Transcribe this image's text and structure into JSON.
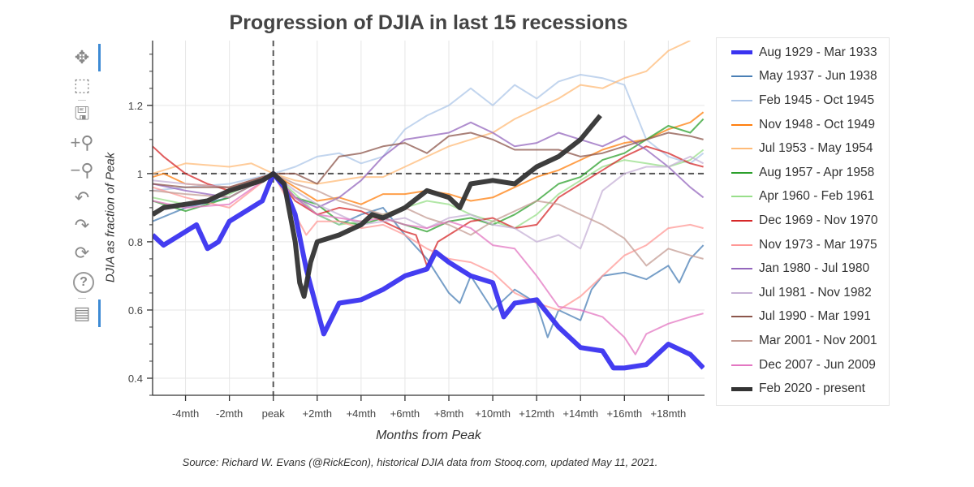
{
  "toolbar": {
    "tools": [
      {
        "name": "pan-icon",
        "glyph": "✥",
        "active": true
      },
      {
        "name": "box-zoom-icon",
        "glyph": "⬚",
        "active": false
      },
      {
        "name": "save-icon",
        "glyph": "🖫",
        "active": false
      },
      {
        "name": "zoom-in-icon",
        "glyph": "+⚲",
        "active": false
      },
      {
        "name": "zoom-out-icon",
        "glyph": "−⚲",
        "active": false
      },
      {
        "name": "undo-icon",
        "glyph": "↶",
        "active": false
      },
      {
        "name": "redo-icon",
        "glyph": "↷",
        "active": false
      },
      {
        "name": "reset-icon",
        "glyph": "⟳",
        "active": false
      },
      {
        "name": "help-icon",
        "glyph": "?",
        "active": false
      },
      {
        "name": "hover-icon",
        "glyph": "▤",
        "active": true
      }
    ]
  },
  "chart_data": {
    "type": "line",
    "title": "Progression of DJIA in last 15 recessions",
    "xlabel": "Months from Peak",
    "ylabel": "DJIA as fraction of Peak",
    "source": "Source: Richard W. Evans (@RickEcon), historical DJIA data from Stooq.com, updated May 11, 2021.",
    "xlim": [
      -5.5,
      19.65
    ],
    "ylim": [
      0.35,
      1.39
    ],
    "x_ticks": [
      {
        "v": -4,
        "label": "-4mth"
      },
      {
        "v": -2,
        "label": "-2mth"
      },
      {
        "v": 0,
        "label": "peak"
      },
      {
        "v": 2,
        "label": "+2mth"
      },
      {
        "v": 4,
        "label": "+4mth"
      },
      {
        "v": 6,
        "label": "+6mth"
      },
      {
        "v": 8,
        "label": "+8mth"
      },
      {
        "v": 10,
        "label": "+10mth"
      },
      {
        "v": 12,
        "label": "+12mth"
      },
      {
        "v": 14,
        "label": "+14mth"
      },
      {
        "v": 16,
        "label": "+16mth"
      },
      {
        "v": 18,
        "label": "+18mth"
      }
    ],
    "y_ticks": [
      {
        "v": 0.4,
        "label": "0.4"
      },
      {
        "v": 0.6,
        "label": "0.6"
      },
      {
        "v": 0.8,
        "label": "0.8"
      },
      {
        "v": 1.0,
        "label": "1"
      },
      {
        "v": 1.2,
        "label": "1.2"
      }
    ],
    "grid": true,
    "reference_lines": {
      "vertical_x": 0,
      "horizontal_y": 1.0
    },
    "legend_position": "right",
    "series": [
      {
        "name": "Aug 1929 - Mar 1933",
        "color": "#3a33f0",
        "thick": true,
        "x": [
          -5.5,
          -5,
          -4,
          -3.5,
          -3,
          -2.5,
          -2,
          -1,
          -0.5,
          0,
          0.5,
          1,
          1.5,
          2,
          2.3,
          3,
          4,
          5,
          6,
          7,
          7.4,
          8,
          9,
          10,
          10.5,
          11,
          12,
          13,
          14,
          15,
          15.5,
          16,
          17,
          18,
          19,
          19.6
        ],
        "y": [
          0.82,
          0.79,
          0.83,
          0.85,
          0.78,
          0.8,
          0.86,
          0.9,
          0.92,
          1.0,
          0.96,
          0.88,
          0.72,
          0.6,
          0.53,
          0.62,
          0.63,
          0.66,
          0.7,
          0.72,
          0.77,
          0.74,
          0.7,
          0.68,
          0.58,
          0.62,
          0.63,
          0.55,
          0.49,
          0.48,
          0.43,
          0.43,
          0.44,
          0.5,
          0.47,
          0.43
        ]
      },
      {
        "name": "May 1937 - Jun 1938",
        "color": "#4a7fb5",
        "x": [
          -5.5,
          -4,
          -2,
          0,
          1,
          2,
          3,
          4,
          5,
          6,
          7,
          8,
          8.5,
          9,
          10,
          11,
          12,
          12.5,
          13,
          14,
          14.5,
          15,
          16,
          17,
          18,
          18.5,
          19,
          19.6
        ],
        "y": [
          0.86,
          0.9,
          0.93,
          1.0,
          0.93,
          0.88,
          0.85,
          0.88,
          0.9,
          0.82,
          0.75,
          0.65,
          0.62,
          0.7,
          0.6,
          0.66,
          0.62,
          0.52,
          0.6,
          0.57,
          0.66,
          0.7,
          0.71,
          0.69,
          0.73,
          0.68,
          0.75,
          0.79
        ]
      },
      {
        "name": "Feb 1945 - Oct 1945",
        "color": "#aec7e8",
        "x": [
          -5.5,
          -4,
          -2,
          0,
          1,
          2,
          3,
          4,
          5,
          6,
          7,
          8,
          9,
          10,
          11,
          12,
          13,
          14,
          15,
          16,
          17,
          18,
          19,
          19.6
        ],
        "y": [
          0.95,
          0.96,
          0.97,
          1.0,
          1.02,
          1.05,
          1.06,
          1.03,
          1.05,
          1.13,
          1.17,
          1.2,
          1.25,
          1.2,
          1.26,
          1.22,
          1.27,
          1.29,
          1.28,
          1.26,
          1.1,
          1.05,
          1.03,
          1.06
        ]
      },
      {
        "name": "Nov 1948 - Oct 1949",
        "color": "#ff7f0e",
        "x": [
          -5.5,
          -5,
          -4,
          -2,
          0,
          1,
          2,
          3,
          4,
          5,
          6,
          7,
          8,
          9,
          10,
          11,
          12,
          13,
          14,
          15,
          16,
          17,
          18,
          19,
          19.6
        ],
        "y": [
          0.99,
          1.0,
          0.97,
          0.96,
          1.0,
          0.96,
          0.92,
          0.93,
          0.91,
          0.94,
          0.94,
          0.95,
          0.94,
          0.92,
          0.93,
          0.96,
          0.99,
          1.01,
          1.04,
          1.07,
          1.09,
          1.1,
          1.13,
          1.15,
          1.18
        ]
      },
      {
        "name": "Jul 1953 - May 1954",
        "color": "#ffbb78",
        "x": [
          -5.5,
          -4,
          -2,
          -1,
          0,
          1,
          2,
          3,
          4,
          5,
          6,
          7,
          8,
          9,
          10,
          11,
          12,
          13,
          14,
          15,
          16,
          17,
          18,
          19
        ],
        "y": [
          1.0,
          1.03,
          1.02,
          1.03,
          1.0,
          0.98,
          0.97,
          0.98,
          0.99,
          0.99,
          1.02,
          1.05,
          1.08,
          1.1,
          1.12,
          1.16,
          1.19,
          1.22,
          1.26,
          1.25,
          1.28,
          1.3,
          1.36,
          1.39
        ]
      },
      {
        "name": "Aug 1957 - Apr 1958",
        "color": "#2ca02c",
        "x": [
          -5.5,
          -4,
          -2,
          0,
          1,
          2,
          3,
          4,
          5,
          6,
          7,
          8,
          9,
          10,
          11,
          12,
          13,
          14,
          15,
          16,
          17,
          18,
          19,
          19.6
        ],
        "y": [
          0.92,
          0.89,
          0.93,
          1.0,
          0.93,
          0.91,
          0.86,
          0.85,
          0.87,
          0.85,
          0.83,
          0.86,
          0.87,
          0.85,
          0.88,
          0.92,
          0.97,
          0.99,
          1.04,
          1.06,
          1.1,
          1.14,
          1.12,
          1.16
        ]
      },
      {
        "name": "Apr 1960 - Feb 1961",
        "color": "#98df8a",
        "x": [
          -5.5,
          -4,
          -2,
          0,
          1,
          2,
          3,
          4,
          5,
          6,
          7,
          8,
          9,
          10,
          11,
          12,
          13,
          14,
          15,
          16,
          17,
          18,
          19,
          19.6
        ],
        "y": [
          0.93,
          0.91,
          0.94,
          1.0,
          0.94,
          0.88,
          0.85,
          0.86,
          0.88,
          0.9,
          0.92,
          0.91,
          0.88,
          0.86,
          0.84,
          0.88,
          0.94,
          0.98,
          1.02,
          1.04,
          1.03,
          1.02,
          1.04,
          1.07
        ]
      },
      {
        "name": "Dec 1969 - Nov 1970",
        "color": "#d62728",
        "x": [
          -5.5,
          -5,
          -4,
          -3,
          -2,
          -1,
          0,
          1,
          2,
          3,
          4,
          5,
          6,
          6.5,
          7,
          7.5,
          8,
          9,
          10,
          11,
          12,
          13,
          14,
          15,
          16,
          17,
          18,
          19,
          19.6
        ],
        "y": [
          1.08,
          1.05,
          1.0,
          0.97,
          0.95,
          0.97,
          1.0,
          0.92,
          0.88,
          0.9,
          0.89,
          0.86,
          0.83,
          0.82,
          0.73,
          0.8,
          0.82,
          0.86,
          0.87,
          0.84,
          0.85,
          0.93,
          0.97,
          1.01,
          1.05,
          1.08,
          1.06,
          1.03,
          1.02
        ]
      },
      {
        "name": "Nov 1973 - Mar 1975",
        "color": "#ff9896",
        "x": [
          -5.5,
          -4,
          -2,
          0,
          1,
          1.5,
          2,
          3,
          4,
          5,
          6,
          7,
          8,
          9,
          10,
          11,
          12,
          13,
          14,
          15,
          16,
          17,
          18,
          19,
          19.6
        ],
        "y": [
          0.96,
          0.93,
          0.9,
          1.0,
          0.88,
          0.82,
          0.86,
          0.86,
          0.84,
          0.85,
          0.82,
          0.78,
          0.75,
          0.74,
          0.71,
          0.65,
          0.62,
          0.6,
          0.64,
          0.7,
          0.76,
          0.79,
          0.84,
          0.85,
          0.84
        ]
      },
      {
        "name": "Jan 1980 - Jul 1980",
        "color": "#9467bd",
        "x": [
          -5.5,
          -4,
          -2,
          0,
          1,
          2,
          3,
          4,
          5,
          6,
          7,
          8,
          9,
          10,
          11,
          12,
          13,
          14,
          15,
          16,
          17,
          18,
          19,
          19.6
        ],
        "y": [
          0.97,
          0.95,
          0.93,
          1.0,
          0.93,
          0.9,
          0.93,
          0.98,
          1.05,
          1.1,
          1.11,
          1.12,
          1.15,
          1.12,
          1.08,
          1.09,
          1.12,
          1.1,
          1.08,
          1.11,
          1.07,
          1.02,
          0.96,
          0.93
        ]
      },
      {
        "name": "Jul 1981 - Nov 1982",
        "color": "#c5b0d5",
        "x": [
          -5.5,
          -4,
          -2,
          0,
          1,
          2,
          3,
          4,
          5,
          6,
          7,
          8,
          9,
          10,
          11,
          12,
          13,
          14,
          15,
          16,
          17,
          18,
          19,
          19.6
        ],
        "y": [
          0.98,
          0.97,
          0.96,
          1.0,
          0.95,
          0.91,
          0.88,
          0.85,
          0.86,
          0.87,
          0.84,
          0.87,
          0.88,
          0.85,
          0.84,
          0.8,
          0.82,
          0.78,
          0.95,
          1.0,
          1.02,
          1.02,
          1.05,
          1.03
        ]
      },
      {
        "name": "Jul 1990 - Mar 1991",
        "color": "#8c564b",
        "x": [
          -5.5,
          -4,
          -2,
          0,
          1,
          2,
          3,
          4,
          5,
          6,
          7,
          8,
          9,
          10,
          11,
          12,
          13,
          14,
          15,
          16,
          17,
          18,
          19,
          19.6
        ],
        "y": [
          0.97,
          0.96,
          0.96,
          1.0,
          1.0,
          0.97,
          1.05,
          1.06,
          1.08,
          1.09,
          1.06,
          1.11,
          1.12,
          1.1,
          1.07,
          1.07,
          1.07,
          1.05,
          1.06,
          1.08,
          1.1,
          1.12,
          1.11,
          1.1
        ]
      },
      {
        "name": "Mar 2001 - Nov 2001",
        "color": "#c49c94",
        "x": [
          -5.5,
          -4,
          -2,
          0,
          1,
          2,
          3,
          4,
          5,
          6,
          7,
          8,
          9,
          10,
          11,
          12,
          13,
          14,
          15,
          16,
          17,
          18,
          19,
          19.6
        ],
        "y": [
          0.95,
          0.94,
          0.93,
          1.0,
          0.97,
          0.95,
          0.92,
          0.9,
          0.88,
          0.9,
          0.87,
          0.85,
          0.82,
          0.86,
          0.89,
          0.92,
          0.91,
          0.88,
          0.85,
          0.81,
          0.73,
          0.78,
          0.76,
          0.75
        ]
      },
      {
        "name": "Dec 2007 - Jun 2009",
        "color": "#e377c2",
        "x": [
          -5.5,
          -4,
          -2,
          0,
          1,
          2,
          3,
          4,
          5,
          6,
          7,
          8,
          9,
          10,
          11,
          12,
          13,
          14,
          15,
          16,
          16.5,
          17,
          18,
          19,
          19.6
        ],
        "y": [
          0.92,
          0.9,
          0.91,
          1.0,
          0.93,
          0.88,
          0.87,
          0.86,
          0.87,
          0.85,
          0.84,
          0.86,
          0.84,
          0.79,
          0.78,
          0.7,
          0.61,
          0.6,
          0.58,
          0.52,
          0.47,
          0.53,
          0.56,
          0.58,
          0.59
        ]
      },
      {
        "name": "Feb 2020 - present",
        "color": "#333333",
        "thick": true,
        "x": [
          -5.5,
          -5,
          -4,
          -3,
          -2,
          -1,
          -0.5,
          0,
          0.5,
          1,
          1.2,
          1.4,
          1.7,
          2,
          3,
          4,
          4.5,
          5,
          6,
          7,
          8,
          8.5,
          9,
          10,
          11,
          12,
          13,
          14,
          14.9
        ],
        "y": [
          0.88,
          0.9,
          0.91,
          0.92,
          0.95,
          0.97,
          0.98,
          1.0,
          0.97,
          0.8,
          0.68,
          0.64,
          0.74,
          0.8,
          0.82,
          0.85,
          0.88,
          0.87,
          0.9,
          0.95,
          0.93,
          0.9,
          0.97,
          0.98,
          0.97,
          1.02,
          1.05,
          1.1,
          1.17
        ]
      }
    ]
  }
}
